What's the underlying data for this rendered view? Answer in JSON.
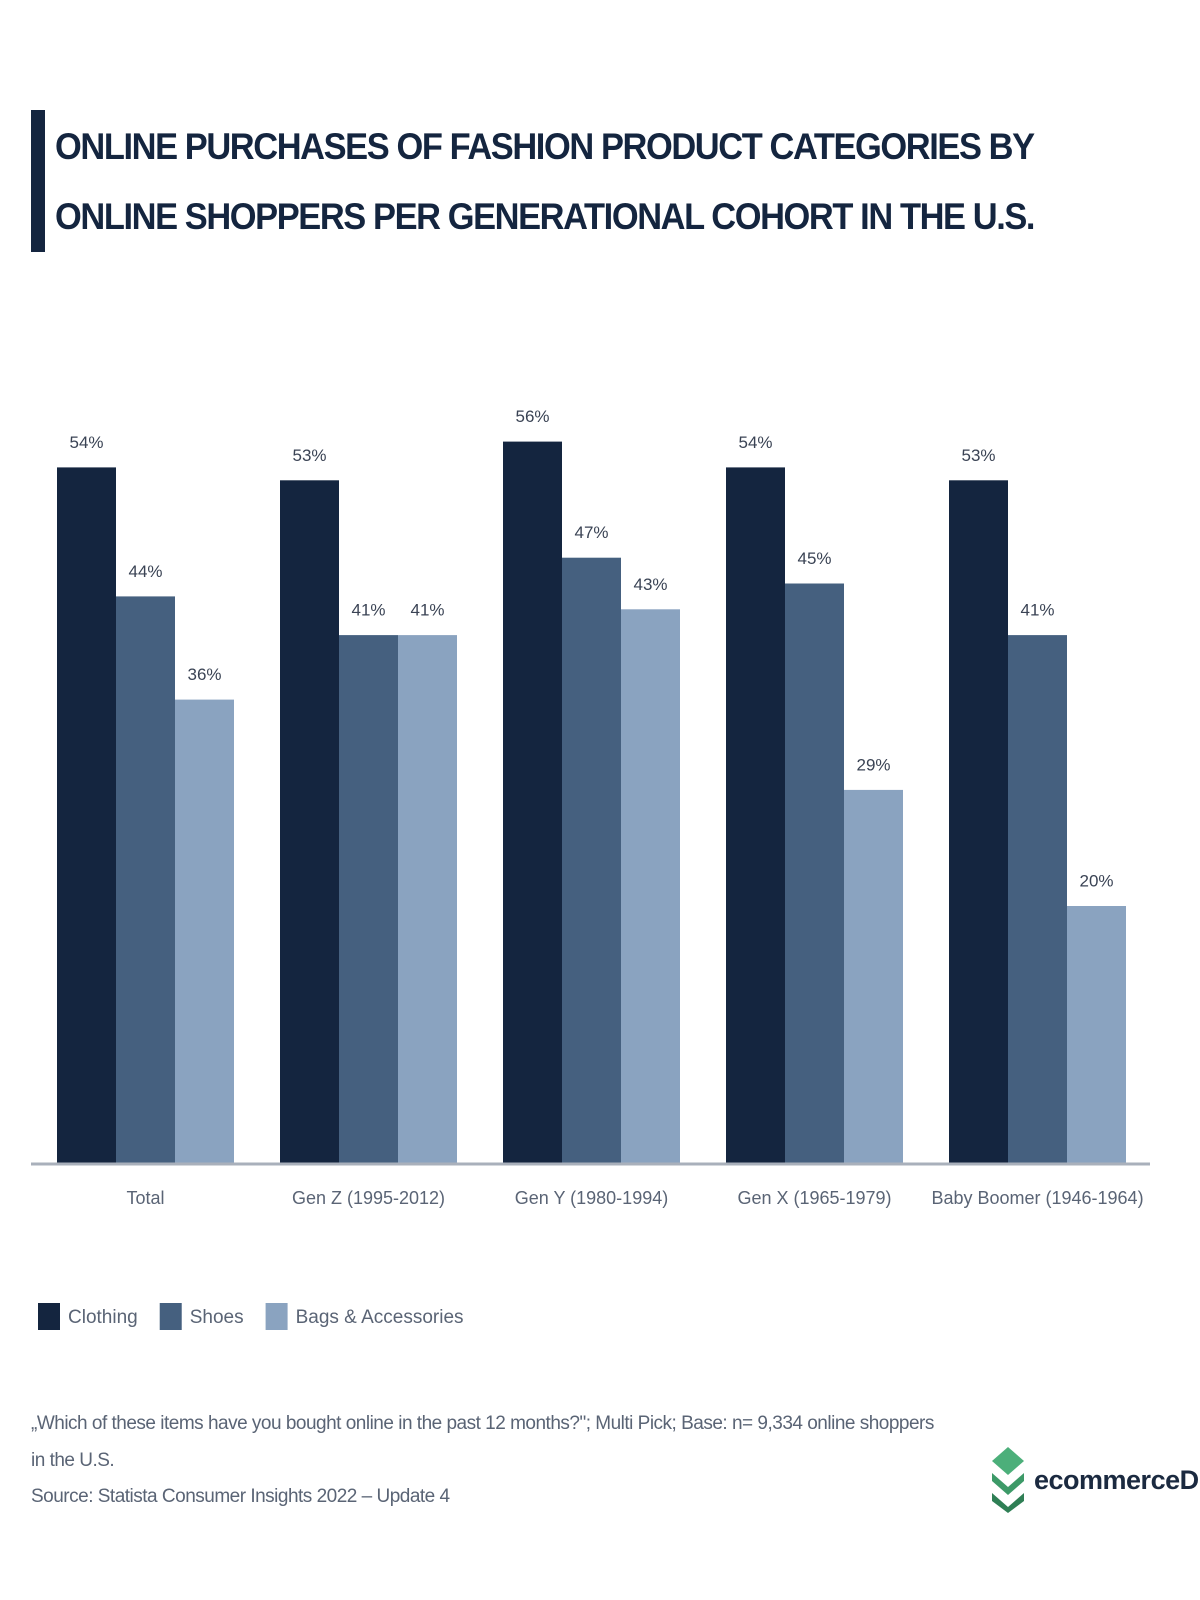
{
  "chart_data": {
    "type": "bar",
    "title": "ONLINE PURCHASES OF FASHION PRODUCT CATEGORIES BY ONLINE SHOPPERS PER GENERATIONAL COHORT IN THE U.S.",
    "categories": [
      "Total",
      "Gen Z (1995-2012)",
      "Gen Y (1980-1994)",
      "Gen X (1965-1979)",
      "Baby Boomer (1946-1964)"
    ],
    "series": [
      {
        "name": "Clothing",
        "color": "#14253f",
        "values": [
          54,
          53,
          56,
          54,
          53
        ],
        "value_labels": [
          "54%",
          "53%",
          "56%",
          "54%",
          "53%"
        ]
      },
      {
        "name": "Shoes",
        "color": "#45607f",
        "values": [
          44,
          41,
          47,
          45,
          41
        ],
        "value_labels": [
          "44%",
          "41%",
          "47%",
          "45%",
          "41%"
        ]
      },
      {
        "name": "Bags & Accessories",
        "color": "#8aa3c0",
        "values": [
          36,
          41,
          43,
          29,
          20
        ],
        "value_labels": [
          "36%",
          "41%",
          "43%",
          "29%",
          "20%"
        ]
      }
    ],
    "note": "„Which of these items have you bought online in the past 12 months?\"; Multi Pick; Base: n= 9,334 online shoppers in the U.S.",
    "source": "Source: Statista Consumer Insights 2022 – Update 4",
    "logo": "ecommerceDB"
  }
}
